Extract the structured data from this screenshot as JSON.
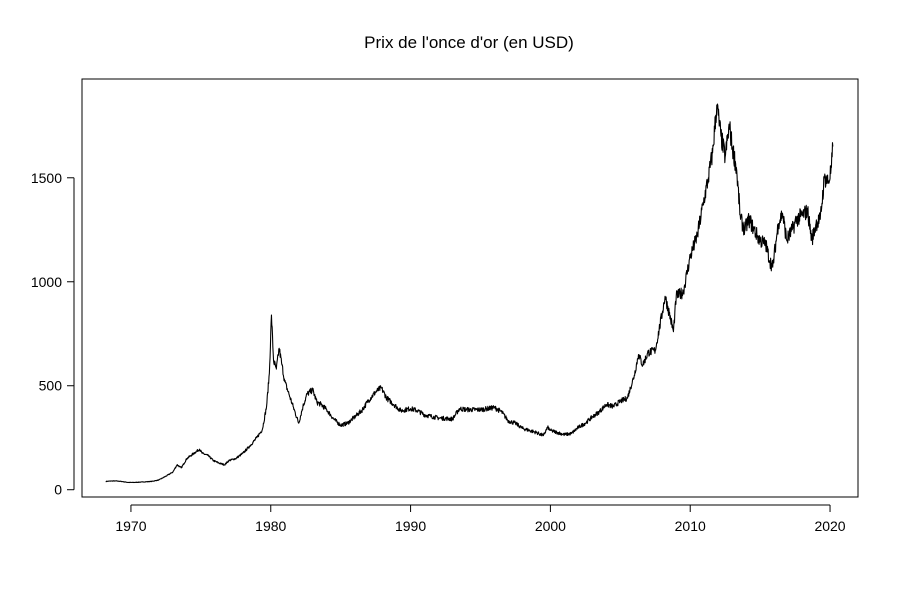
{
  "chart_data": {
    "type": "line",
    "title": "Prix de l'once d'or (en USD)",
    "xlabel": "",
    "ylabel": "",
    "xlim": [
      1966.5,
      2022
    ],
    "ylim": [
      -35,
      1975
    ],
    "xticks": [
      1970,
      1980,
      1990,
      2000,
      2010,
      2020
    ],
    "xtick_labels": [
      "1970",
      "1980",
      "1990",
      "2000",
      "2010",
      "2020"
    ],
    "yticks": [
      0,
      500,
      1000,
      1500
    ],
    "ytick_labels": [
      "0",
      "500",
      "1000",
      "1500"
    ],
    "grid": false,
    "line_color": "#000000",
    "series": [
      {
        "x": [
          1968.2,
          1968.6,
          1969.0,
          1969.4,
          1969.8,
          1970.2,
          1970.8,
          1971.5,
          1972.0,
          1972.5,
          1973.0,
          1973.3,
          1973.6,
          1974.0,
          1974.3,
          1974.6,
          1974.9,
          1975.1,
          1975.5,
          1975.9,
          1976.3,
          1976.7,
          1977.0,
          1977.5,
          1978.0,
          1978.5,
          1979.0,
          1979.4,
          1979.7,
          1979.9,
          1980.05,
          1980.2,
          1980.4,
          1980.6,
          1980.8,
          1981.0,
          1981.3,
          1981.6,
          1982.0,
          1982.3,
          1982.6,
          1983.0,
          1983.3,
          1983.6,
          1984.0,
          1984.5,
          1985.0,
          1985.5,
          1986.0,
          1986.5,
          1987.0,
          1987.5,
          1987.9,
          1988.3,
          1988.8,
          1989.3,
          1990.0,
          1990.5,
          1991.0,
          1992.0,
          1993.0,
          1993.5,
          1994.0,
          1995.0,
          1996.0,
          1996.5,
          1997.0,
          1997.5,
          1998.0,
          1999.0,
          1999.5,
          1999.8,
          2000.0,
          2000.5,
          2001.0,
          2001.5,
          2002.0,
          2002.5,
          2003.0,
          2003.5,
          2004.0,
          2004.5,
          2005.0,
          2005.5,
          2006.0,
          2006.3,
          2006.6,
          2007.0,
          2007.5,
          2008.0,
          2008.2,
          2008.5,
          2008.8,
          2009.0,
          2009.5,
          2010.0,
          2010.5,
          2011.0,
          2011.3,
          2011.6,
          2011.9,
          2012.2,
          2012.5,
          2012.8,
          2013.0,
          2013.3,
          2013.6,
          2013.9,
          2014.2,
          2014.5,
          2014.8,
          2015.0,
          2015.4,
          2015.7,
          2015.9,
          2016.3,
          2016.6,
          2016.9,
          2017.3,
          2017.6,
          2018.0,
          2018.4,
          2018.7,
          2019.0,
          2019.3,
          2019.6,
          2019.9,
          2020.1,
          2020.2
        ],
        "y": [
          40,
          42,
          42,
          39,
          35,
          35,
          37,
          40,
          47,
          65,
          85,
          120,
          105,
          150,
          165,
          180,
          195,
          175,
          165,
          140,
          128,
          120,
          140,
          150,
          175,
          210,
          250,
          290,
          400,
          560,
          840,
          620,
          580,
          680,
          600,
          520,
          460,
          400,
          320,
          400,
          460,
          480,
          420,
          410,
          385,
          340,
          310,
          320,
          350,
          380,
          430,
          470,
          490,
          440,
          410,
          380,
          390,
          380,
          360,
          345,
          340,
          390,
          385,
          385,
          395,
          375,
          330,
          320,
          295,
          275,
          260,
          300,
          285,
          275,
          265,
          270,
          300,
          320,
          350,
          375,
          410,
          400,
          425,
          440,
          550,
          650,
          600,
          660,
          670,
          850,
          930,
          850,
          760,
          930,
          950,
          1120,
          1220,
          1400,
          1500,
          1620,
          1850,
          1700,
          1600,
          1750,
          1650,
          1550,
          1300,
          1250,
          1300,
          1260,
          1220,
          1200,
          1180,
          1100,
          1070,
          1280,
          1330,
          1200,
          1250,
          1300,
          1320,
          1340,
          1200,
          1280,
          1300,
          1500,
          1480,
          1550,
          1650
        ]
      }
    ]
  }
}
